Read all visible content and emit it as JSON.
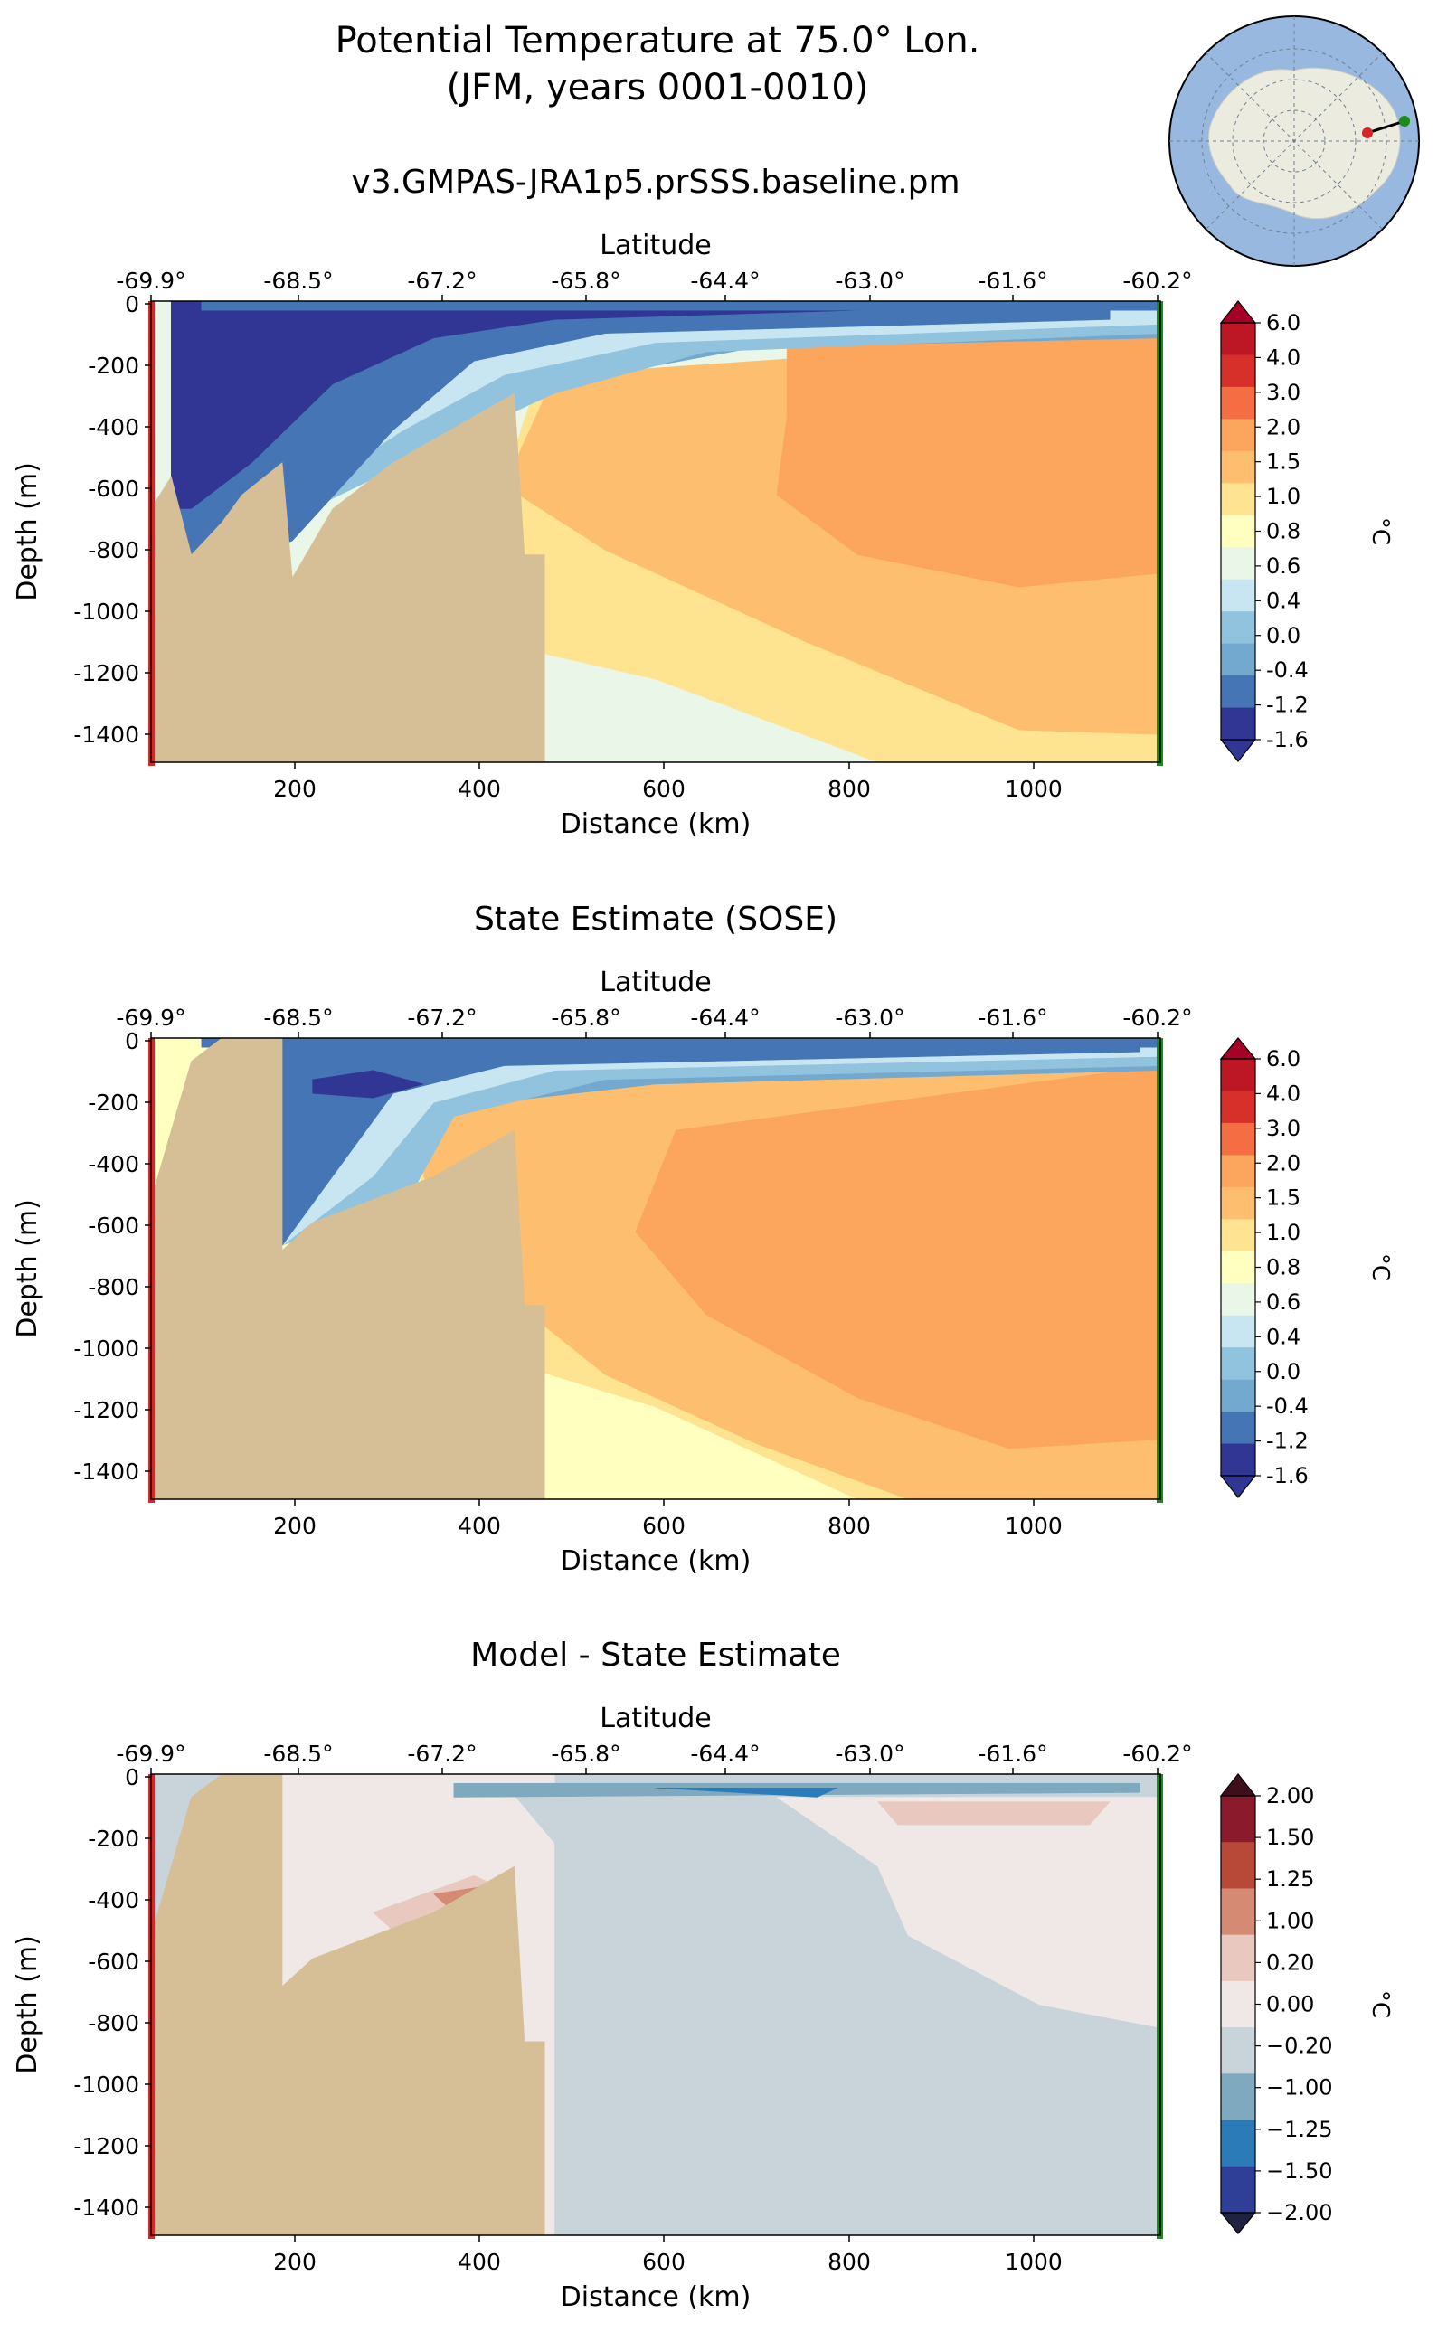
{
  "figure": {
    "title_line1": "Potential Temperature at 75.0° Lon.",
    "title_line2": "(JFM, years 0001-0010)"
  },
  "chart_data": [
    {
      "type": "heatmap",
      "title": "v3.GMPAS-JRA1p5.prSSS.baseline.pm",
      "xlabel": "Distance (km)",
      "ylabel": "Depth (m)",
      "top_xlabel": "Latitude",
      "xlim": [
        50,
        1130
      ],
      "ylim": [
        -1500,
        0
      ],
      "x_ticks": [
        "200",
        "400",
        "600",
        "800",
        "1000"
      ],
      "y_ticks": [
        "0",
        "-200",
        "-400",
        "-600",
        "-800",
        "-1000",
        "-1200",
        "-1400"
      ],
      "lat_ticks": [
        "-69.9°",
        "-68.5°",
        "-67.2°",
        "-65.8°",
        "-64.4°",
        "-63.0°",
        "-61.6°",
        "-60.2°"
      ],
      "colorbar_label": "°C",
      "colorbar_ticks": [
        "6.0",
        "4.0",
        "3.0",
        "2.0",
        "1.5",
        "1.0",
        "0.8",
        "0.6",
        "0.4",
        "0.0",
        "-0.4",
        "-1.2",
        "-1.6"
      ],
      "colorbar_colors": [
        "#bd1726",
        "#d7302a",
        "#f46d43",
        "#fca55d",
        "#fdbe70",
        "#fee491",
        "#ffffbf",
        "#e9f6e8",
        "#c7e6f1",
        "#91c3de",
        "#74a9cf",
        "#4575b4",
        "#313695"
      ],
      "extend_colors": [
        "#a50026",
        "#313695"
      ]
    },
    {
      "type": "heatmap",
      "title": "State Estimate (SOSE)",
      "xlabel": "Distance (km)",
      "ylabel": "Depth (m)",
      "top_xlabel": "Latitude",
      "xlim": [
        50,
        1130
      ],
      "ylim": [
        -1500,
        0
      ],
      "x_ticks": [
        "200",
        "400",
        "600",
        "800",
        "1000"
      ],
      "y_ticks": [
        "0",
        "-200",
        "-400",
        "-600",
        "-800",
        "-1000",
        "-1200",
        "-1400"
      ],
      "lat_ticks": [
        "-69.9°",
        "-68.5°",
        "-67.2°",
        "-65.8°",
        "-64.4°",
        "-63.0°",
        "-61.6°",
        "-60.2°"
      ],
      "colorbar_label": "°C",
      "colorbar_ticks": [
        "6.0",
        "4.0",
        "3.0",
        "2.0",
        "1.5",
        "1.0",
        "0.8",
        "0.6",
        "0.4",
        "0.0",
        "-0.4",
        "-1.2",
        "-1.6"
      ],
      "colorbar_colors": [
        "#bd1726",
        "#d7302a",
        "#f46d43",
        "#fca55d",
        "#fdbe70",
        "#fee491",
        "#ffffbf",
        "#e9f6e8",
        "#c7e6f1",
        "#91c3de",
        "#74a9cf",
        "#4575b4",
        "#313695"
      ],
      "extend_colors": [
        "#a50026",
        "#313695"
      ]
    },
    {
      "type": "heatmap",
      "title": "Model - State Estimate",
      "xlabel": "Distance (km)",
      "ylabel": "Depth (m)",
      "top_xlabel": "Latitude",
      "xlim": [
        50,
        1130
      ],
      "ylim": [
        -1500,
        0
      ],
      "x_ticks": [
        "200",
        "400",
        "600",
        "800",
        "1000"
      ],
      "y_ticks": [
        "0",
        "-200",
        "-400",
        "-600",
        "-800",
        "-1000",
        "-1200",
        "-1400"
      ],
      "lat_ticks": [
        "-69.9°",
        "-68.5°",
        "-67.2°",
        "-65.8°",
        "-64.4°",
        "-63.0°",
        "-61.6°",
        "-60.2°"
      ],
      "colorbar_label": "°C",
      "colorbar_ticks": [
        "2.00",
        "1.50",
        "1.25",
        "1.00",
        "0.20",
        "0.00",
        "−0.20",
        "−1.00",
        "−1.25",
        "−1.50",
        "−2.00"
      ],
      "colorbar_colors": [
        "#8b1a2d",
        "#b84838",
        "#d58b73",
        "#e8c8bf",
        "#efe8e6",
        "#c8d3da",
        "#7ea9bf",
        "#2a7bb8",
        "#2f3f98"
      ],
      "extend_colors": [
        "#3d0f1a",
        "#1f2340"
      ]
    }
  ],
  "colors": {
    "land": "#d6bf96",
    "start_marker": "#d62728",
    "end_marker": "#1a8a1a",
    "ocean": "#98b8df",
    "continent": "#ecebe0"
  }
}
